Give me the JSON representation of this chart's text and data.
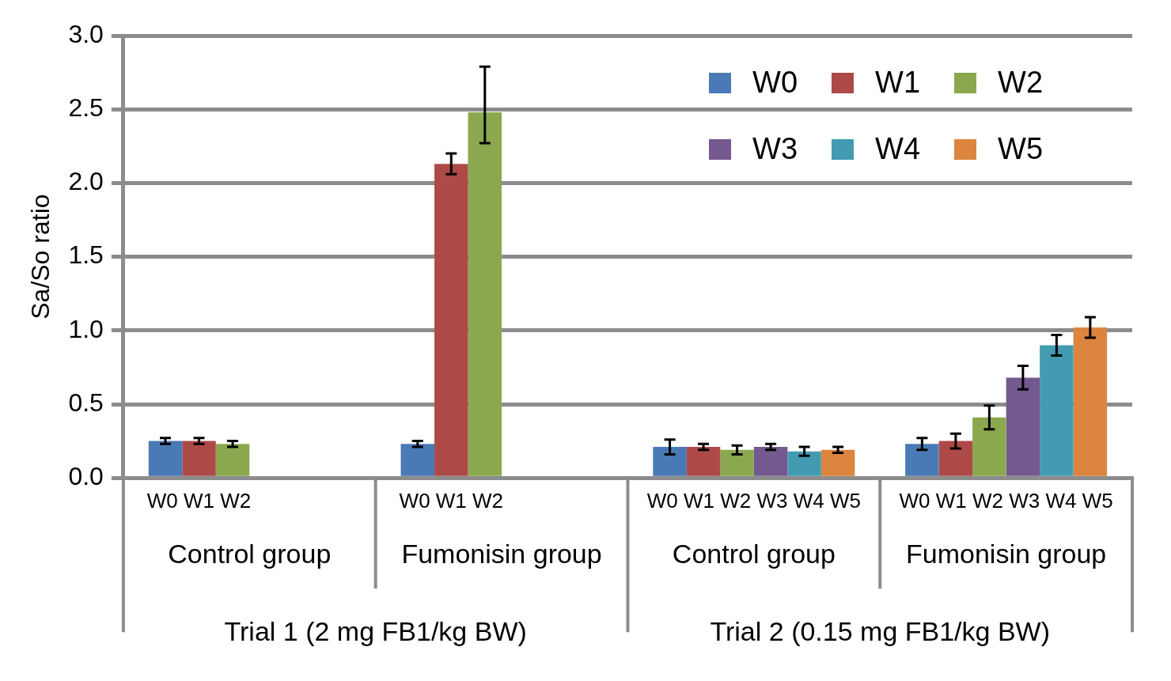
{
  "chart_data": {
    "type": "bar",
    "ylabel": "Sa/So ratio",
    "categories": [
      "Control group",
      "Fumonisin group",
      "Control group",
      "Fumonisin group"
    ],
    "series": [
      {
        "name": "W0",
        "color": "#4a7ab5",
        "values": [
          0.25,
          0.23,
          0.21,
          0.23
        ],
        "errors": [
          0.02,
          0.02,
          0.05,
          0.04
        ]
      },
      {
        "name": "W1",
        "color": "#ad4a47",
        "values": [
          0.25,
          2.13,
          0.21,
          0.25
        ],
        "errors": [
          0.02,
          0.07,
          0.02,
          0.05
        ]
      },
      {
        "name": "W2",
        "color": "#8ba84e",
        "values": [
          0.23,
          2.48,
          0.19,
          0.41
        ],
        "errors": [
          0.02,
          [
            2.27,
            2.79
          ],
          0.03,
          0.08
        ]
      },
      {
        "name": "W3",
        "color": "#73598f",
        "values": [
          null,
          null,
          0.21,
          0.68
        ],
        "errors": [
          null,
          null,
          0.02,
          0.08
        ]
      },
      {
        "name": "W4",
        "color": "#439bb2",
        "values": [
          null,
          null,
          0.18,
          0.9
        ],
        "errors": [
          null,
          null,
          0.03,
          0.07
        ]
      },
      {
        "name": "W5",
        "color": "#dc853f",
        "values": [
          null,
          null,
          0.19,
          1.02
        ],
        "errors": [
          null,
          null,
          0.02,
          0.07
        ]
      }
    ],
    "ylim": [
      0,
      3
    ],
    "yticks": [
      {
        "value": 0,
        "label": "0.0"
      },
      {
        "value": 0.5,
        "label": "0.5"
      },
      {
        "value": 1,
        "label": "1.0"
      },
      {
        "value": 1.5,
        "label": "1.5"
      },
      {
        "value": 2,
        "label": "2.0"
      },
      {
        "value": 2.5,
        "label": "2.5"
      },
      {
        "value": 3,
        "label": "3.0"
      }
    ],
    "grid": "y",
    "legend": "top right",
    "annotations": [
      "W0 W1 W2",
      "W0 W1 W2",
      "W0 W1 W2 W3 W4 W5",
      "W0 W1 W2 W3 W4 W5",
      "Trial 1 (2 mg FB1/kg BW)",
      "Trial 2 (0.15 mg FB1/kg BW)"
    ]
  }
}
